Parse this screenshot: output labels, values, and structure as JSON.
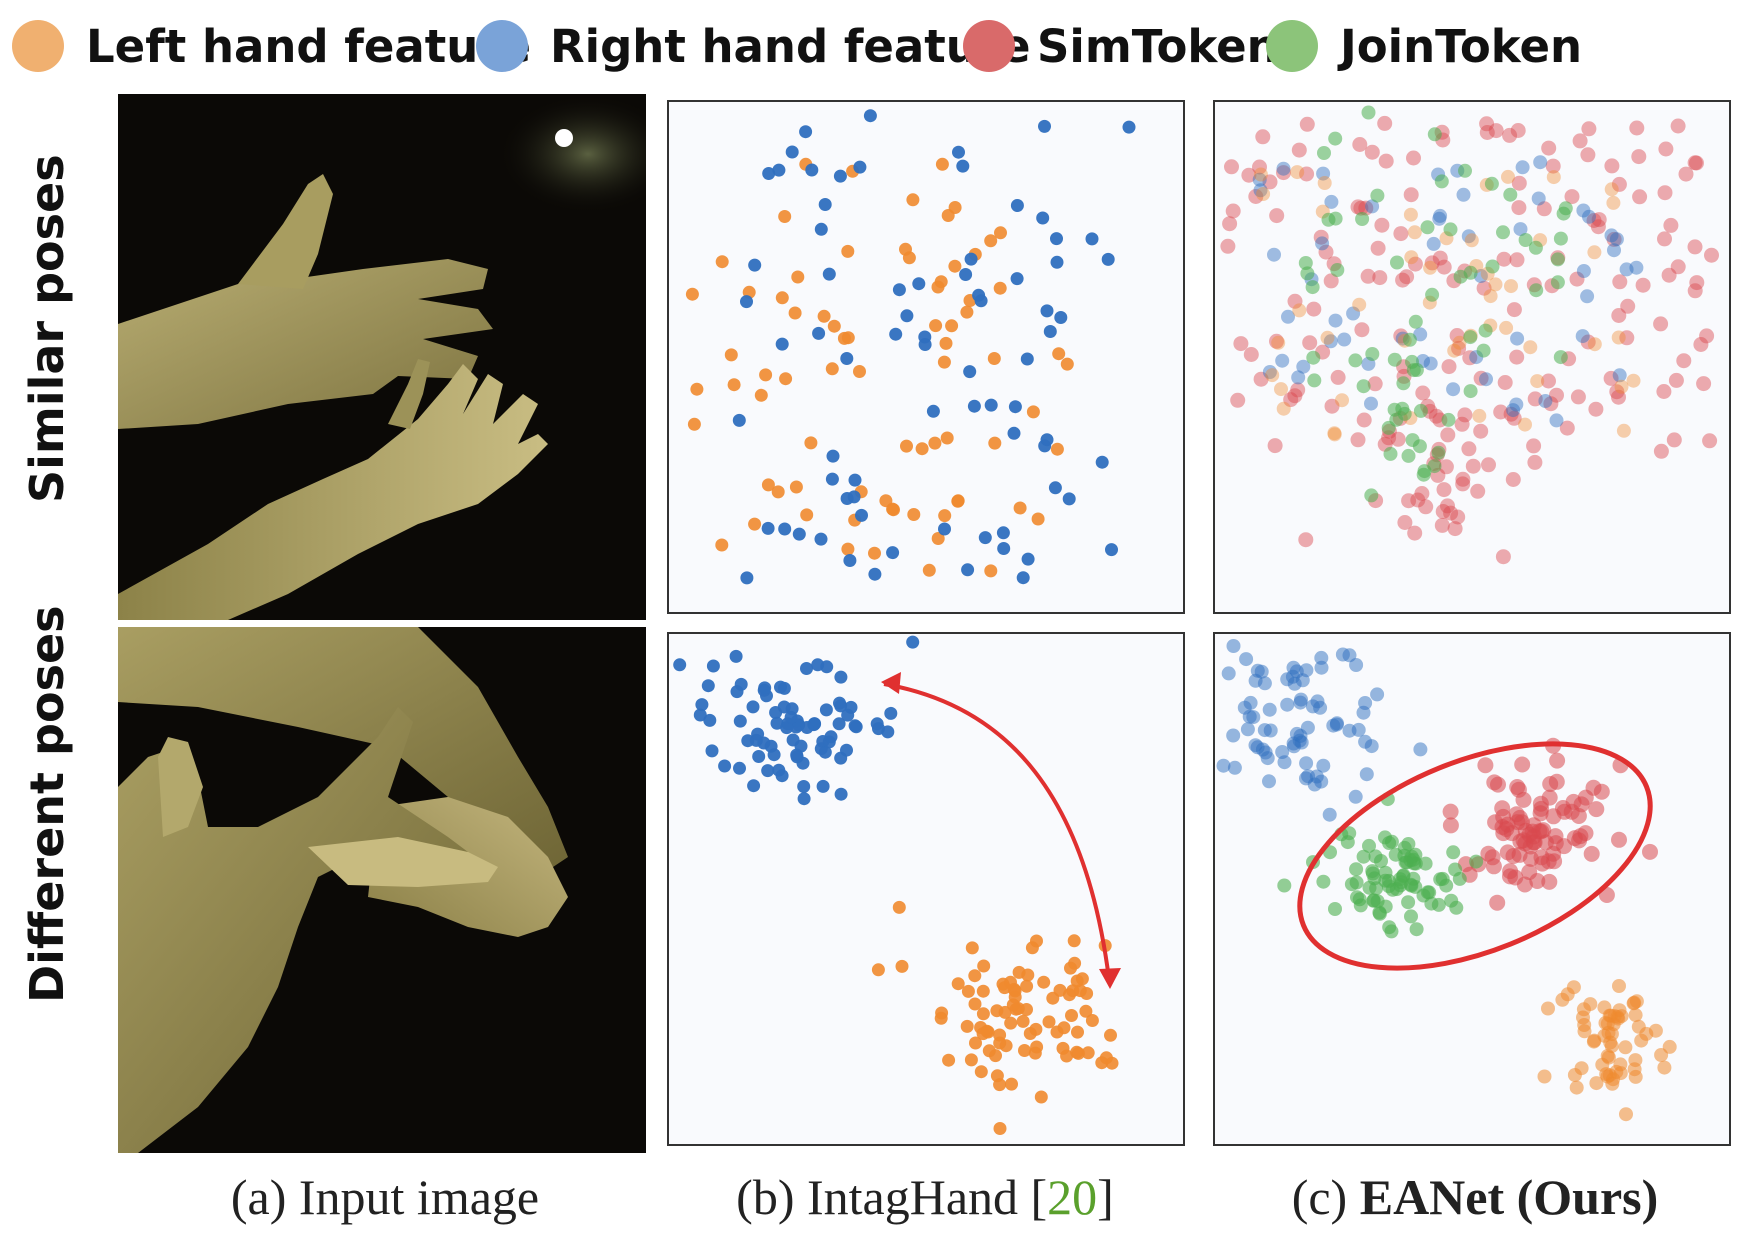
{
  "legend": [
    {
      "label": "Left hand feature",
      "color": "#f0a860"
    },
    {
      "label": "Right hand feature",
      "color": "#6f9dd6"
    },
    {
      "label": "SimToken",
      "color": "#d96a6a"
    },
    {
      "label": "JoinToken",
      "color": "#8cc47a"
    }
  ],
  "rows": {
    "top_label": "Similar poses",
    "bottom_label": "Different poses"
  },
  "captions": {
    "a": "(a) Input image",
    "b_prefix": "(b) IntagHand [",
    "b_ref": "20",
    "b_suffix": "]",
    "c_prefix": "(c) ",
    "c_bold": "EANet (Ours)"
  },
  "colors": {
    "left": "#ef8a2f",
    "right": "#2f6fbf",
    "sim": "#d9484e",
    "join": "#4caf50",
    "annotation": "#e03030"
  }
}
